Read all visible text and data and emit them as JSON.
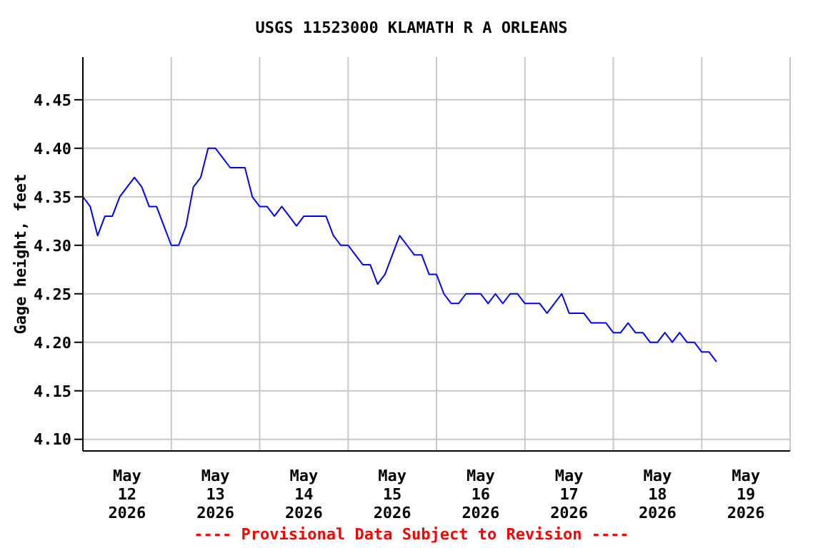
{
  "chart_data": {
    "type": "line",
    "title": "USGS 11523000 KLAMATH R A ORLEANS",
    "ylabel": "Gage height, feet",
    "annotations": [
      "---- Provisional Data Subject to Revision ----"
    ],
    "x": [
      "2026-05-12T00:00",
      "2026-05-12T02:00",
      "2026-05-12T04:00",
      "2026-05-12T06:00",
      "2026-05-12T08:00",
      "2026-05-12T10:00",
      "2026-05-12T12:00",
      "2026-05-12T14:00",
      "2026-05-12T16:00",
      "2026-05-12T18:00",
      "2026-05-12T20:00",
      "2026-05-12T22:00",
      "2026-05-13T00:00",
      "2026-05-13T02:00",
      "2026-05-13T04:00",
      "2026-05-13T06:00",
      "2026-05-13T08:00",
      "2026-05-13T10:00",
      "2026-05-13T12:00",
      "2026-05-13T14:00",
      "2026-05-13T16:00",
      "2026-05-13T18:00",
      "2026-05-13T20:00",
      "2026-05-13T22:00",
      "2026-05-14T00:00",
      "2026-05-14T02:00",
      "2026-05-14T04:00",
      "2026-05-14T06:00",
      "2026-05-14T08:00",
      "2026-05-14T10:00",
      "2026-05-14T12:00",
      "2026-05-14T14:00",
      "2026-05-14T16:00",
      "2026-05-14T18:00",
      "2026-05-14T20:00",
      "2026-05-14T22:00",
      "2026-05-15T00:00",
      "2026-05-15T02:00",
      "2026-05-15T04:00",
      "2026-05-15T06:00",
      "2026-05-15T08:00",
      "2026-05-15T10:00",
      "2026-05-15T12:00",
      "2026-05-15T14:00",
      "2026-05-15T16:00",
      "2026-05-15T18:00",
      "2026-05-15T20:00",
      "2026-05-15T22:00",
      "2026-05-16T00:00",
      "2026-05-16T02:00",
      "2026-05-16T04:00",
      "2026-05-16T06:00",
      "2026-05-16T08:00",
      "2026-05-16T10:00",
      "2026-05-16T12:00",
      "2026-05-16T14:00",
      "2026-05-16T16:00",
      "2026-05-16T18:00",
      "2026-05-16T20:00",
      "2026-05-16T22:00",
      "2026-05-17T00:00",
      "2026-05-17T02:00",
      "2026-05-17T04:00",
      "2026-05-17T06:00",
      "2026-05-17T08:00",
      "2026-05-17T10:00",
      "2026-05-17T12:00",
      "2026-05-17T14:00",
      "2026-05-17T16:00",
      "2026-05-17T18:00",
      "2026-05-17T20:00",
      "2026-05-17T22:00",
      "2026-05-18T00:00",
      "2026-05-18T02:00",
      "2026-05-18T04:00",
      "2026-05-18T06:00",
      "2026-05-18T08:00",
      "2026-05-18T10:00",
      "2026-05-18T12:00",
      "2026-05-18T14:00",
      "2026-05-18T16:00",
      "2026-05-18T18:00",
      "2026-05-18T20:00",
      "2026-05-18T22:00",
      "2026-05-19T00:00",
      "2026-05-19T02:00",
      "2026-05-19T04:00"
    ],
    "series": [
      {
        "color": "#0000ff",
        "values": [
          4.35,
          4.34,
          4.31,
          4.33,
          4.33,
          4.35,
          4.36,
          4.37,
          4.36,
          4.34,
          4.34,
          4.32,
          4.3,
          4.3,
          4.32,
          4.36,
          4.37,
          4.4,
          4.4,
          4.39,
          4.38,
          4.38,
          4.38,
          4.35,
          4.34,
          4.34,
          4.33,
          4.34,
          4.33,
          4.32,
          4.33,
          4.33,
          4.33,
          4.33,
          4.31,
          4.3,
          4.3,
          4.29,
          4.28,
          4.28,
          4.26,
          4.27,
          4.29,
          4.31,
          4.3,
          4.29,
          4.29,
          4.27,
          4.27,
          4.25,
          4.24,
          4.24,
          4.25,
          4.25,
          4.25,
          4.24,
          4.25,
          4.24,
          4.25,
          4.25,
          4.24,
          4.24,
          4.24,
          4.23,
          4.24,
          4.25,
          4.23,
          4.23,
          4.23,
          4.22,
          4.22,
          4.22,
          4.21,
          4.21,
          4.22,
          4.21,
          4.21,
          4.2,
          4.2,
          4.21,
          4.2,
          4.21,
          4.2,
          4.2,
          4.19,
          4.19,
          4.18
        ]
      }
    ],
    "xlim": [
      "2026-05-12T00:00",
      "2026-05-20T00:00"
    ],
    "xticks": [
      {
        "value": "2026-05-12T00:00",
        "label": null
      },
      {
        "value": "2026-05-12T12:00",
        "label": "May\n12\n2026"
      },
      {
        "value": "2026-05-13T00:00",
        "label": null
      },
      {
        "value": "2026-05-13T12:00",
        "label": "May\n13\n2026"
      },
      {
        "value": "2026-05-14T00:00",
        "label": null
      },
      {
        "value": "2026-05-14T12:00",
        "label": "May\n14\n2026"
      },
      {
        "value": "2026-05-15T00:00",
        "label": null
      },
      {
        "value": "2026-05-15T12:00",
        "label": "May\n15\n2026"
      },
      {
        "value": "2026-05-16T00:00",
        "label": null
      },
      {
        "value": "2026-05-16T12:00",
        "label": "May\n16\n2026"
      },
      {
        "value": "2026-05-17T00:00",
        "label": null
      },
      {
        "value": "2026-05-17T12:00",
        "label": "May\n17\n2026"
      },
      {
        "value": "2026-05-18T00:00",
        "label": null
      },
      {
        "value": "2026-05-18T12:00",
        "label": "May\n18\n2026"
      },
      {
        "value": "2026-05-19T00:00",
        "label": null
      },
      {
        "value": "2026-05-19T12:00",
        "label": "May\n19\n2026"
      },
      {
        "value": "2026-05-20T00:00",
        "label": null
      }
    ],
    "ylim": [
      4.088,
      4.494
    ],
    "yticks": [
      {
        "value": 4.1,
        "label": "4.10"
      },
      {
        "value": 4.15,
        "label": "4.15"
      },
      {
        "value": 4.2,
        "label": "4.20"
      },
      {
        "value": 4.25,
        "label": "4.25"
      },
      {
        "value": 4.3,
        "label": "4.30"
      },
      {
        "value": 4.35,
        "label": "4.35"
      },
      {
        "value": 4.4,
        "label": "4.40"
      },
      {
        "value": 4.45,
        "label": "4.45"
      }
    ],
    "grid": true,
    "legend": false,
    "marker": "none",
    "line_style": "solid"
  }
}
